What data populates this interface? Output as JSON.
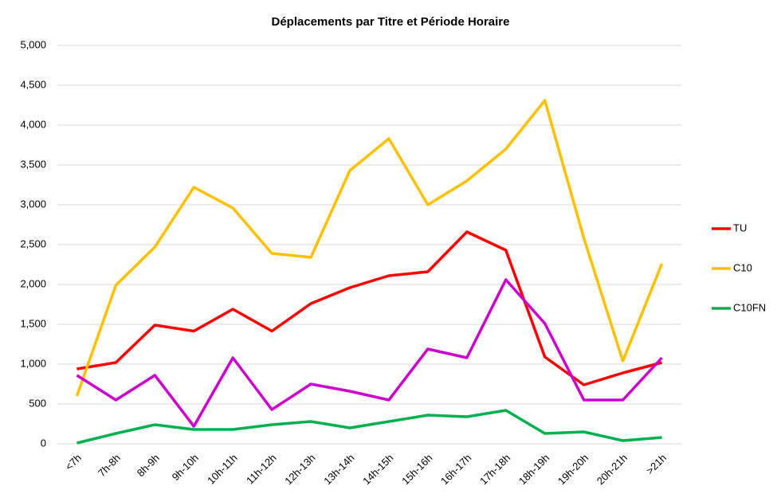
{
  "chart_data": {
    "type": "line",
    "title": "Déplacements par Titre et Période Horaire",
    "categories": [
      "<7h",
      "7h-8h",
      "8h-9h",
      "9h-10h",
      "10h-11h",
      "11h-12h",
      "12h-13h",
      "13h-14h",
      "14h-15h",
      "15h-16h",
      "16h-17h",
      "17h-18h",
      "18h-19h",
      "19h-20h",
      "20h-21h",
      ">21h"
    ],
    "series": [
      {
        "name": "TU",
        "color": "#ff0000",
        "values": [
          940,
          1020,
          1490,
          1415,
          1690,
          1415,
          1760,
          1960,
          2110,
          2160,
          2660,
          2430,
          1090,
          740,
          890,
          1020
        ]
      },
      {
        "name": "C10",
        "color": "#ffc000",
        "values": [
          600,
          1990,
          2470,
          3220,
          2960,
          2390,
          2340,
          3430,
          3830,
          3000,
          3300,
          3700,
          4310,
          2580,
          1040,
          2260
        ]
      },
      {
        "name": "C10FN",
        "color": "#00b050",
        "values": [
          10,
          130,
          240,
          180,
          180,
          240,
          280,
          200,
          280,
          360,
          340,
          420,
          130,
          150,
          40,
          80
        ]
      },
      {
        "color": "#cc00cc",
        "values": [
          860,
          550,
          860,
          220,
          1080,
          430,
          750,
          660,
          550,
          1190,
          1080,
          2060,
          1510,
          550,
          550,
          1080
        ]
      }
    ],
    "ylim": [
      0,
      5000
    ],
    "yticks": [
      0,
      500,
      {
        "value": 1000,
        "label": "1,000"
      },
      {
        "value": 1500,
        "label": "1,500"
      },
      {
        "value": 2000,
        "label": "2,000"
      },
      {
        "value": 2500,
        "label": "2,500"
      },
      {
        "value": 3000,
        "label": "3,000"
      },
      {
        "value": 3500,
        "label": "3,500"
      },
      {
        "value": 4000,
        "label": "4,000"
      },
      {
        "value": 4500,
        "label": "4,500"
      },
      {
        "value": 5000,
        "label": "5,000"
      }
    ],
    "grid": true,
    "legend": "right"
  }
}
